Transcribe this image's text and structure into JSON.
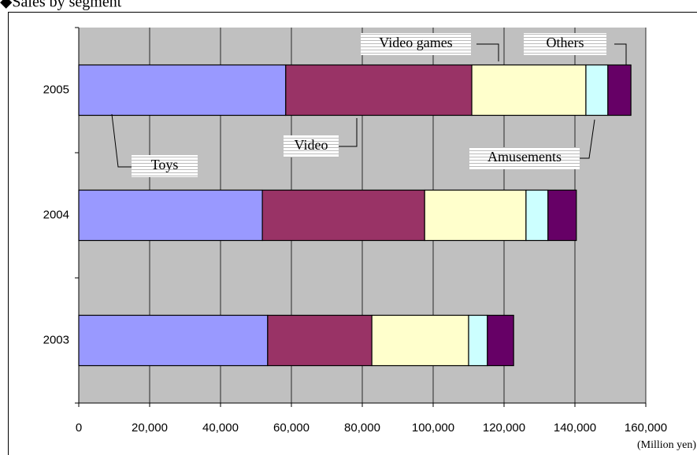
{
  "chart_data": {
    "type": "stacked_barh",
    "title": "◆Sales by segment",
    "xlabel": "(Million yen)",
    "categories": [
      "2005",
      "2004",
      "2003"
    ],
    "series": [
      {
        "name": "Toys",
        "color": "#9999ff",
        "values": [
          58400,
          51800,
          53300
        ]
      },
      {
        "name": "Video",
        "color": "#993366",
        "values": [
          52500,
          45800,
          29400
        ]
      },
      {
        "name": "Video games",
        "color": "#ffffcc",
        "values": [
          32200,
          28600,
          27300
        ]
      },
      {
        "name": "Amusements",
        "color": "#ccffff",
        "values": [
          6200,
          6200,
          5300
        ]
      },
      {
        "name": "Others",
        "color": "#660066",
        "values": [
          6500,
          8000,
          7400
        ]
      }
    ],
    "xlim": [
      0,
      160000
    ],
    "xticks": [
      0,
      {
        "value": 20000,
        "label": "20,000"
      },
      {
        "value": 40000,
        "label": "40,000"
      },
      {
        "value": 60000,
        "label": "60,000"
      },
      {
        "value": 80000,
        "label": "80,000"
      },
      {
        "value": 100000,
        "label": "100,000"
      },
      {
        "value": 120000,
        "label": "120,000"
      },
      {
        "value": 140000,
        "label": "140,000"
      },
      {
        "value": 160000,
        "label": "160,000"
      }
    ],
    "grid": true,
    "plot_background": "#c0c0c0"
  }
}
